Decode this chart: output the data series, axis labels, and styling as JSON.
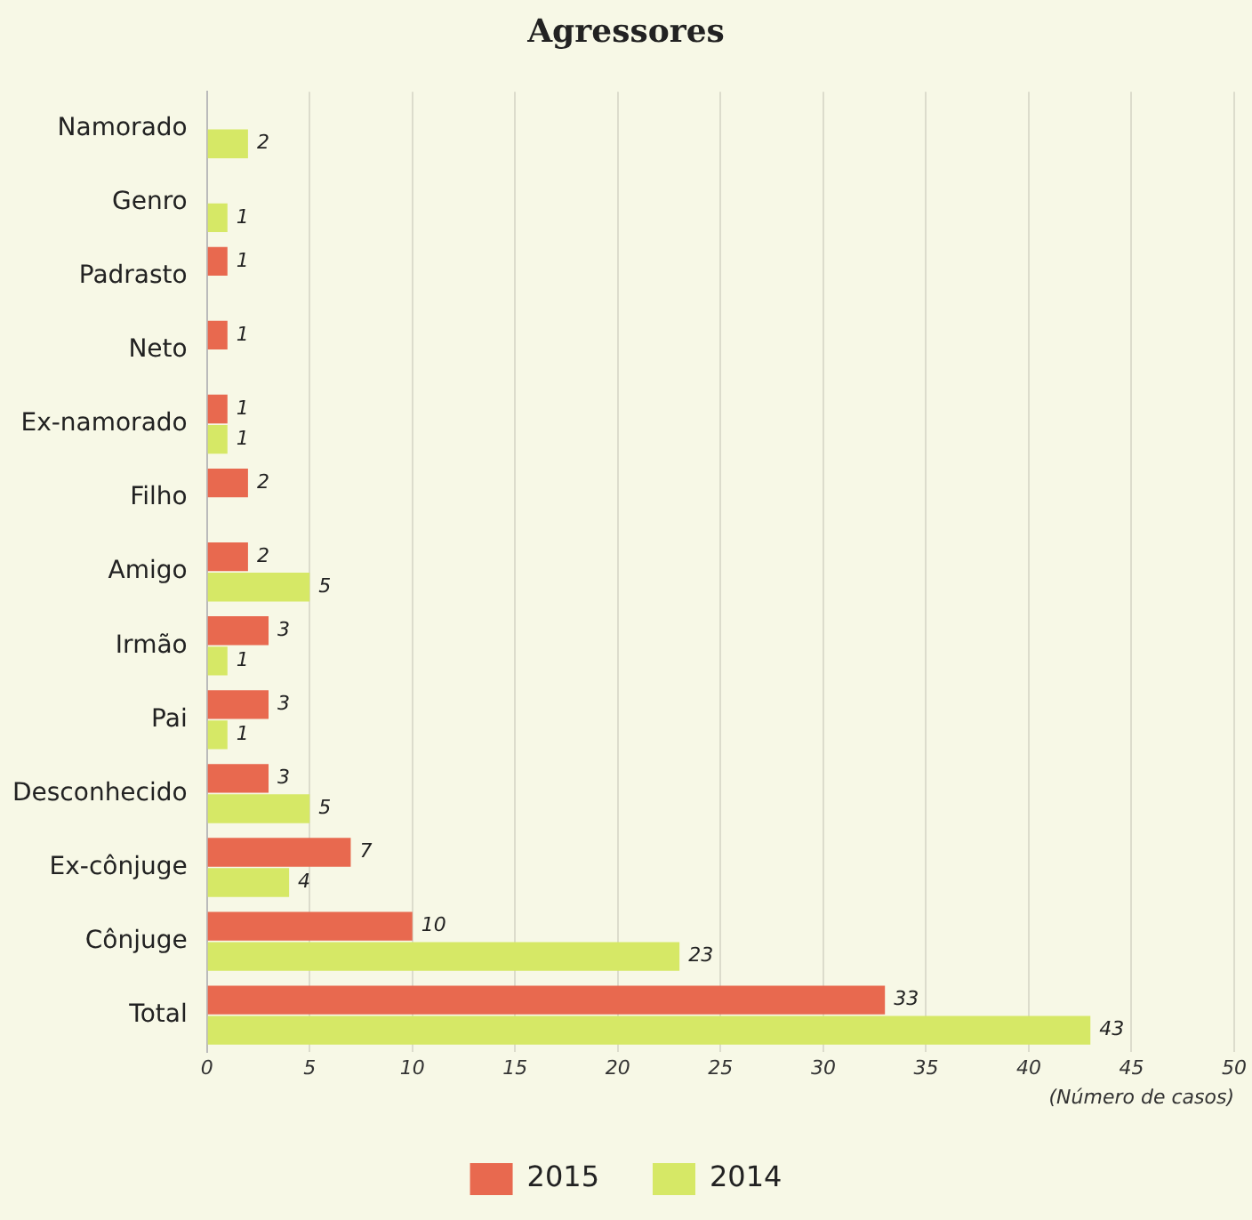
{
  "chart_data": {
    "type": "bar",
    "title": "Agressores",
    "orientation": "horizontal",
    "xlabel": "(Número de casos)",
    "categories": [
      "Namorado",
      "Genro",
      "Padrasto",
      "Neto",
      "Ex-namorado",
      "Filho",
      "Amigo",
      "Irmão",
      "Pai",
      "Desconhecido",
      "Ex-cônjuge",
      "Cônjuge",
      "Total"
    ],
    "series": [
      {
        "name": "2015",
        "color": "#e8694f",
        "values": [
          null,
          null,
          1,
          1,
          1,
          2,
          2,
          3,
          3,
          3,
          7,
          10,
          33
        ]
      },
      {
        "name": "2014",
        "color": "#d6e866",
        "values": [
          2,
          1,
          null,
          null,
          1,
          null,
          5,
          1,
          1,
          5,
          4,
          23,
          43
        ]
      }
    ],
    "xlim": [
      0,
      50
    ],
    "xticks": [
      0,
      5,
      10,
      15,
      20,
      25,
      30,
      35,
      40,
      45,
      50
    ],
    "grid": "x",
    "legend": "bottom",
    "data_labels": true
  }
}
